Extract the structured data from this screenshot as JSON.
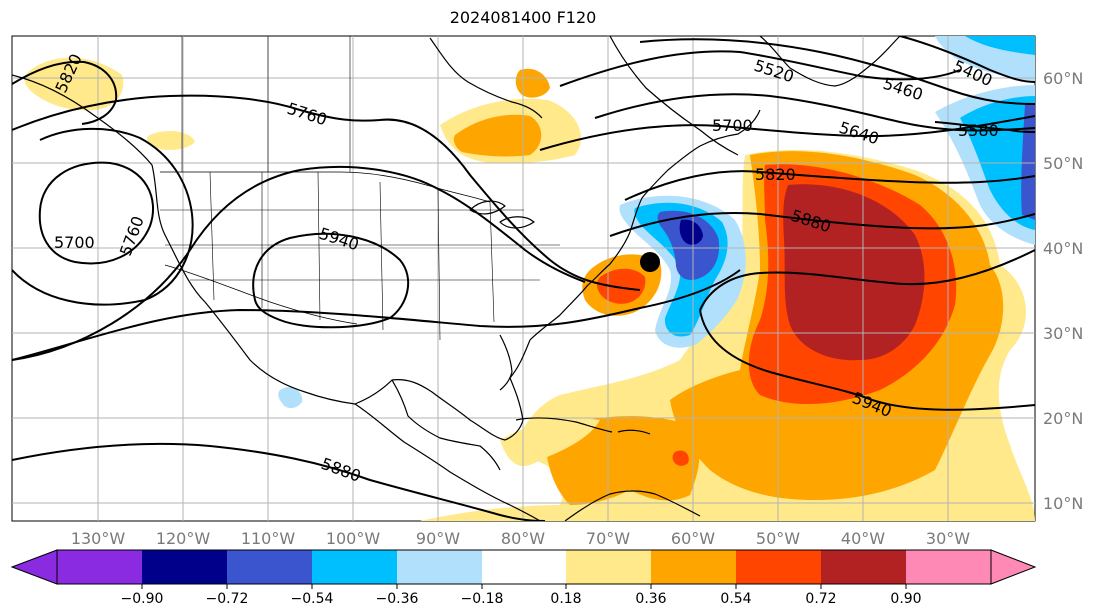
{
  "title": "2024081400 F120",
  "axes": {
    "lon_ticks": [
      "130°W",
      "120°W",
      "110°W",
      "100°W",
      "90°W",
      "80°W",
      "70°W",
      "60°W",
      "50°W",
      "40°W",
      "30°W"
    ],
    "lat_ticks": [
      "60°N",
      "50°N",
      "40°N",
      "30°N",
      "20°N",
      "10°N"
    ]
  },
  "contour_labels": [
    "5820",
    "5760",
    "5700",
    "5760",
    "5940",
    "5880",
    "5520",
    "5460",
    "5400",
    "5700",
    "5640",
    "5580",
    "5820",
    "5880",
    "5940"
  ],
  "colorbar": {
    "colors": [
      "#8a2be2",
      "#00008b",
      "#3b55cf",
      "#00bfff",
      "#b0e0fb",
      "#ffffff",
      "#ffe98a",
      "#ffa500",
      "#ff4500",
      "#b22222",
      "#ff89b5"
    ],
    "tick_labels": [
      "−0.90",
      "−0.72",
      "−0.54",
      "−0.36",
      "−0.18",
      "0.18",
      "0.36",
      "0.54",
      "0.72",
      "0.90"
    ]
  }
}
